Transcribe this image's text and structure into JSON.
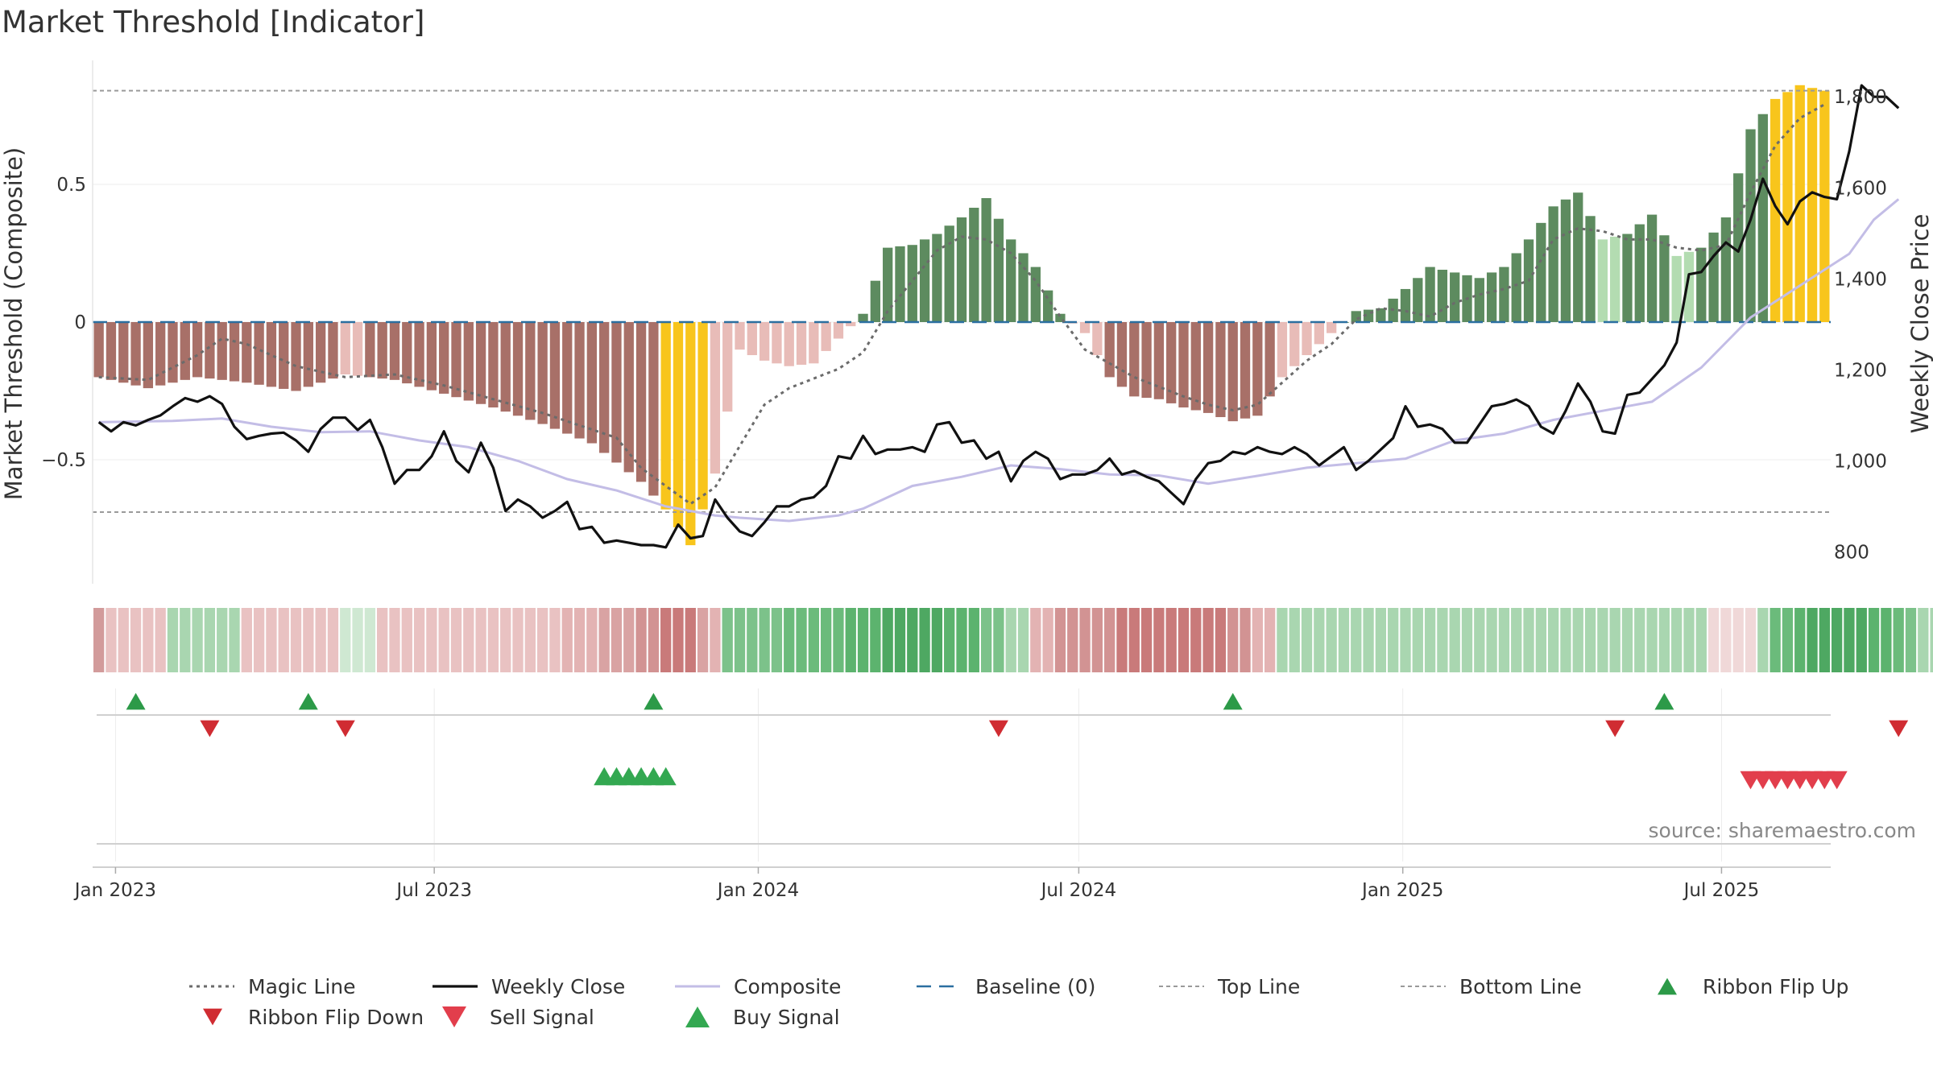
{
  "chart_data": {
    "type": "bar",
    "title": "Market Threshold [Indicator]",
    "ylabel_left": "Market Threshold (Composite)",
    "ylabel_right": "Weekly Close Price",
    "source": "source: sharemaestro.com",
    "x_start": "2022-12-19",
    "x_end": "2025-09-01",
    "xticks": [
      {
        "date": "2023-01-01",
        "label": "Jan 2023"
      },
      {
        "date": "2023-07-01",
        "label": "Jul 2023"
      },
      {
        "date": "2024-01-01",
        "label": "Jan 2024"
      },
      {
        "date": "2024-07-01",
        "label": "Jul 2024"
      },
      {
        "date": "2025-01-01",
        "label": "Jan 2025"
      },
      {
        "date": "2025-07-01",
        "label": "Jul 2025"
      }
    ],
    "ylim_left": [
      -0.95,
      0.95
    ],
    "yticks_left": [
      {
        "v": 0.5,
        "label": "0.5"
      },
      {
        "v": 0,
        "label": "0"
      },
      {
        "v": -0.5,
        "label": "−0.5"
      }
    ],
    "ylim_right": [
      730,
      1880
    ],
    "yticks_right": [
      {
        "v": 800,
        "label": "800"
      },
      {
        "v": 1000,
        "label": "1,000"
      },
      {
        "v": 1200,
        "label": "1,200"
      },
      {
        "v": 1400,
        "label": "1,400"
      },
      {
        "v": 1600,
        "label": "1,600"
      },
      {
        "v": 1800,
        "label": "1,800"
      }
    ],
    "top_line": 0.84,
    "bottom_line": -0.69,
    "composite_anchors": [
      [
        0,
        -0.2
      ],
      [
        4,
        -0.24
      ],
      [
        8,
        -0.2
      ],
      [
        12,
        -0.22
      ],
      [
        16,
        -0.25
      ],
      [
        20,
        -0.19
      ],
      [
        24,
        -0.21
      ],
      [
        28,
        -0.26
      ],
      [
        32,
        -0.31
      ],
      [
        36,
        -0.37
      ],
      [
        40,
        -0.44
      ],
      [
        44,
        -0.58
      ],
      [
        46,
        -0.68
      ],
      [
        48,
        -0.81
      ],
      [
        50,
        -0.55
      ],
      [
        52,
        -0.1
      ],
      [
        54,
        -0.14
      ],
      [
        56,
        -0.16
      ],
      [
        58,
        -0.15
      ],
      [
        60,
        -0.06
      ],
      [
        62,
        0.03
      ],
      [
        64,
        0.27
      ],
      [
        66,
        0.28
      ],
      [
        68,
        0.32
      ],
      [
        70,
        0.38
      ],
      [
        72,
        0.45
      ],
      [
        74,
        0.3
      ],
      [
        76,
        0.2
      ],
      [
        78,
        0.03
      ],
      [
        80,
        -0.04
      ],
      [
        82,
        -0.2
      ],
      [
        84,
        -0.27
      ],
      [
        86,
        -0.28
      ],
      [
        88,
        -0.31
      ],
      [
        90,
        -0.33
      ],
      [
        92,
        -0.36
      ],
      [
        94,
        -0.34
      ],
      [
        96,
        -0.2
      ],
      [
        98,
        -0.12
      ],
      [
        100,
        -0.04
      ],
      [
        102,
        0.04
      ],
      [
        104,
        0.05
      ],
      [
        106,
        0.12
      ],
      [
        108,
        0.2
      ],
      [
        110,
        0.18
      ],
      [
        112,
        0.16
      ],
      [
        114,
        0.2
      ],
      [
        116,
        0.3
      ],
      [
        118,
        0.42
      ],
      [
        120,
        0.47
      ],
      [
        122,
        0.3
      ],
      [
        124,
        0.32
      ],
      [
        126,
        0.39
      ],
      [
        128,
        0.24
      ],
      [
        130,
        0.27
      ],
      [
        132,
        0.38
      ],
      [
        134,
        0.7
      ],
      [
        136,
        0.81
      ],
      [
        138,
        0.86
      ],
      [
        140,
        0.84
      ],
      [
        142,
        0.79
      ],
      [
        144,
        0.76
      ],
      [
        146,
        0.74
      ],
      [
        148,
        0.7
      ],
      [
        150,
        0.64
      ]
    ],
    "magic_line_anchors": [
      [
        0,
        -0.2
      ],
      [
        4,
        -0.21
      ],
      [
        8,
        -0.12
      ],
      [
        10,
        -0.06
      ],
      [
        12,
        -0.08
      ],
      [
        16,
        -0.16
      ],
      [
        20,
        -0.2
      ],
      [
        24,
        -0.19
      ],
      [
        28,
        -0.23
      ],
      [
        32,
        -0.28
      ],
      [
        36,
        -0.33
      ],
      [
        40,
        -0.39
      ],
      [
        42,
        -0.42
      ],
      [
        44,
        -0.53
      ],
      [
        48,
        -0.66
      ],
      [
        50,
        -0.6
      ],
      [
        52,
        -0.45
      ],
      [
        54,
        -0.3
      ],
      [
        56,
        -0.24
      ],
      [
        60,
        -0.17
      ],
      [
        62,
        -0.11
      ],
      [
        64,
        0.04
      ],
      [
        66,
        0.15
      ],
      [
        68,
        0.26
      ],
      [
        70,
        0.31
      ],
      [
        72,
        0.3
      ],
      [
        74,
        0.25
      ],
      [
        76,
        0.15
      ],
      [
        78,
        0.02
      ],
      [
        80,
        -0.1
      ],
      [
        84,
        -0.2
      ],
      [
        88,
        -0.27
      ],
      [
        90,
        -0.3
      ],
      [
        92,
        -0.32
      ],
      [
        94,
        -0.3
      ],
      [
        96,
        -0.22
      ],
      [
        98,
        -0.14
      ],
      [
        100,
        -0.08
      ],
      [
        102,
        0.01
      ],
      [
        104,
        0.05
      ],
      [
        106,
        0.04
      ],
      [
        108,
        0.02
      ],
      [
        110,
        0.07
      ],
      [
        112,
        0.1
      ],
      [
        114,
        0.12
      ],
      [
        116,
        0.15
      ],
      [
        118,
        0.3
      ],
      [
        120,
        0.34
      ],
      [
        122,
        0.33
      ],
      [
        124,
        0.3
      ],
      [
        126,
        0.3
      ],
      [
        128,
        0.27
      ],
      [
        130,
        0.26
      ],
      [
        132,
        0.28
      ],
      [
        134,
        0.47
      ],
      [
        136,
        0.64
      ],
      [
        138,
        0.74
      ],
      [
        140,
        0.79
      ],
      [
        142,
        0.78
      ],
      [
        144,
        0.77
      ],
      [
        146,
        0.76
      ],
      [
        148,
        0.75
      ],
      [
        150,
        0.72
      ]
    ],
    "weekly_close_points": [
      [
        0,
        1085
      ],
      [
        1,
        1065
      ],
      [
        2,
        1085
      ],
      [
        3,
        1078
      ],
      [
        4,
        1090
      ],
      [
        5,
        1100
      ],
      [
        6,
        1120
      ],
      [
        7,
        1138
      ],
      [
        8,
        1130
      ],
      [
        9,
        1142
      ],
      [
        10,
        1125
      ],
      [
        11,
        1075
      ],
      [
        12,
        1048
      ],
      [
        13,
        1055
      ],
      [
        14,
        1060
      ],
      [
        15,
        1062
      ],
      [
        16,
        1045
      ],
      [
        17,
        1020
      ],
      [
        18,
        1070
      ],
      [
        19,
        1095
      ],
      [
        20,
        1095
      ],
      [
        21,
        1068
      ],
      [
        22,
        1090
      ],
      [
        23,
        1030
      ],
      [
        24,
        950
      ],
      [
        25,
        980
      ],
      [
        26,
        980
      ],
      [
        27,
        1010
      ],
      [
        28,
        1065
      ],
      [
        29,
        1000
      ],
      [
        30,
        975
      ],
      [
        31,
        1040
      ],
      [
        32,
        985
      ],
      [
        33,
        890
      ],
      [
        34,
        915
      ],
      [
        35,
        900
      ],
      [
        36,
        875
      ],
      [
        37,
        890
      ],
      [
        38,
        910
      ],
      [
        39,
        850
      ],
      [
        40,
        855
      ],
      [
        41,
        820
      ],
      [
        42,
        825
      ],
      [
        43,
        820
      ],
      [
        44,
        815
      ],
      [
        45,
        815
      ],
      [
        46,
        810
      ],
      [
        47,
        860
      ],
      [
        48,
        830
      ],
      [
        49,
        835
      ],
      [
        50,
        915
      ],
      [
        51,
        875
      ],
      [
        52,
        845
      ],
      [
        53,
        835
      ],
      [
        54,
        865
      ],
      [
        55,
        900
      ],
      [
        56,
        900
      ],
      [
        57,
        915
      ],
      [
        58,
        920
      ],
      [
        59,
        945
      ],
      [
        60,
        1010
      ],
      [
        61,
        1005
      ],
      [
        62,
        1055
      ],
      [
        63,
        1015
      ],
      [
        64,
        1025
      ],
      [
        65,
        1025
      ],
      [
        66,
        1030
      ],
      [
        67,
        1020
      ],
      [
        68,
        1080
      ],
      [
        69,
        1085
      ],
      [
        70,
        1040
      ],
      [
        71,
        1045
      ],
      [
        72,
        1005
      ],
      [
        73,
        1020
      ],
      [
        74,
        955
      ],
      [
        75,
        1000
      ],
      [
        76,
        1020
      ],
      [
        77,
        1005
      ],
      [
        78,
        960
      ],
      [
        79,
        970
      ],
      [
        80,
        970
      ],
      [
        81,
        980
      ],
      [
        82,
        1005
      ],
      [
        83,
        970
      ],
      [
        84,
        978
      ],
      [
        85,
        965
      ],
      [
        86,
        955
      ],
      [
        87,
        930
      ],
      [
        88,
        905
      ],
      [
        89,
        960
      ],
      [
        90,
        995
      ],
      [
        91,
        1000
      ],
      [
        92,
        1020
      ],
      [
        93,
        1015
      ],
      [
        94,
        1030
      ],
      [
        95,
        1020
      ],
      [
        96,
        1015
      ],
      [
        97,
        1030
      ],
      [
        98,
        1015
      ],
      [
        99,
        990
      ],
      [
        100,
        1010
      ],
      [
        101,
        1030
      ],
      [
        102,
        980
      ],
      [
        103,
        1000
      ],
      [
        104,
        1025
      ],
      [
        105,
        1050
      ],
      [
        106,
        1120
      ],
      [
        107,
        1075
      ],
      [
        108,
        1080
      ],
      [
        109,
        1070
      ],
      [
        110,
        1040
      ],
      [
        111,
        1040
      ],
      [
        112,
        1080
      ],
      [
        113,
        1120
      ],
      [
        114,
        1125
      ],
      [
        115,
        1135
      ],
      [
        116,
        1120
      ],
      [
        117,
        1075
      ],
      [
        118,
        1060
      ],
      [
        119,
        1110
      ],
      [
        120,
        1170
      ],
      [
        121,
        1130
      ],
      [
        122,
        1065
      ],
      [
        123,
        1060
      ],
      [
        124,
        1145
      ],
      [
        125,
        1150
      ],
      [
        126,
        1180
      ],
      [
        127,
        1210
      ],
      [
        128,
        1260
      ],
      [
        129,
        1410
      ],
      [
        130,
        1415
      ],
      [
        131,
        1450
      ],
      [
        132,
        1480
      ],
      [
        133,
        1460
      ],
      [
        134,
        1530
      ],
      [
        135,
        1620
      ],
      [
        136,
        1560
      ],
      [
        137,
        1520
      ],
      [
        138,
        1570
      ],
      [
        139,
        1590
      ],
      [
        140,
        1580
      ],
      [
        141,
        1575
      ],
      [
        142,
        1680
      ],
      [
        143,
        1825
      ],
      [
        144,
        1800
      ],
      [
        145,
        1800
      ],
      [
        146,
        1775
      ]
    ],
    "composite_mean_points": [
      [
        0,
        1085
      ],
      [
        6,
        1088
      ],
      [
        10,
        1093
      ],
      [
        14,
        1075
      ],
      [
        18,
        1063
      ],
      [
        22,
        1065
      ],
      [
        26,
        1045
      ],
      [
        30,
        1030
      ],
      [
        34,
        1000
      ],
      [
        38,
        960
      ],
      [
        42,
        935
      ],
      [
        46,
        900
      ],
      [
        50,
        880
      ],
      [
        52,
        875
      ],
      [
        56,
        868
      ],
      [
        60,
        880
      ],
      [
        62,
        895
      ],
      [
        66,
        945
      ],
      [
        70,
        965
      ],
      [
        74,
        990
      ],
      [
        78,
        982
      ],
      [
        82,
        970
      ],
      [
        86,
        968
      ],
      [
        90,
        950
      ],
      [
        94,
        967
      ],
      [
        98,
        985
      ],
      [
        102,
        995
      ],
      [
        106,
        1005
      ],
      [
        110,
        1045
      ],
      [
        114,
        1060
      ],
      [
        118,
        1090
      ],
      [
        122,
        1110
      ],
      [
        126,
        1130
      ],
      [
        130,
        1205
      ],
      [
        134,
        1315
      ],
      [
        138,
        1385
      ],
      [
        142,
        1455
      ],
      [
        144,
        1530
      ],
      [
        146,
        1575
      ]
    ],
    "ribbon_colors": [
      "#d29b9b",
      "#e9c2c2",
      "#e9c2c2",
      "#e9c2c2",
      "#e9c2c2",
      "#e9c2c2",
      "#a9d6b0",
      "#a9d6b0",
      "#a9d6b0",
      "#a9d6b0",
      "#a9d6b0",
      "#a9d6b0",
      "#e9c2c2",
      "#e9c2c2",
      "#e9c2c2",
      "#e9c2c2",
      "#e9c2c2",
      "#e9c2c2",
      "#e9c2c2",
      "#e9c2c2",
      "#cfe8d2",
      "#cfe8d2",
      "#cfe8d2",
      "#e9c2c2",
      "#e9c2c2",
      "#e9c2c2",
      "#e9c2c2",
      "#e9c2c2",
      "#e9c2c2",
      "#e9c2c2",
      "#e9c2c2",
      "#e9c2c2",
      "#e9c2c2",
      "#e9c2c2",
      "#e9c2c2",
      "#e9c2c2",
      "#e9c2c2",
      "#e9c2c2",
      "#e3b3b3",
      "#e3b3b3",
      "#e3b3b3",
      "#d9a3a3",
      "#d9a3a3",
      "#d9a3a3",
      "#d29393",
      "#d29393",
      "#c97a7a",
      "#c97a7a",
      "#c97a7a",
      "#d9a3a3",
      "#e3b3b3",
      "#7cc28a",
      "#7cc28a",
      "#7cc28a",
      "#7cc28a",
      "#7cc28a",
      "#6bbb7b",
      "#6bbb7b",
      "#6bbb7b",
      "#6bbb7b",
      "#6bbb7b",
      "#5cb36e",
      "#5cb36e",
      "#5cb36e",
      "#4ea862",
      "#4ea862",
      "#4ea862",
      "#4ea862",
      "#4ea862",
      "#5cb36e",
      "#5cb36e",
      "#5cb36e",
      "#7cc28a",
      "#7cc28a",
      "#a9d6b0",
      "#a9d6b0",
      "#e3b3b3",
      "#e3b3b3",
      "#d29393",
      "#d29393",
      "#d29393",
      "#d29393",
      "#d29393",
      "#c97a7a",
      "#c97a7a",
      "#c97a7a",
      "#c97a7a",
      "#c97a7a",
      "#c97a7a",
      "#c97a7a",
      "#c97a7a",
      "#c97a7a",
      "#d29393",
      "#d29393",
      "#e3b3b3",
      "#e3b3b3",
      "#a9d6b0",
      "#a9d6b0",
      "#a9d6b0",
      "#a9d6b0",
      "#a9d6b0",
      "#a9d6b0",
      "#a9d6b0",
      "#a9d6b0",
      "#a9d6b0",
      "#a9d6b0",
      "#a9d6b0",
      "#a9d6b0",
      "#a9d6b0",
      "#a9d6b0",
      "#a9d6b0",
      "#a9d6b0",
      "#a9d6b0",
      "#a9d6b0",
      "#a9d6b0",
      "#a9d6b0",
      "#a9d6b0",
      "#a9d6b0",
      "#a9d6b0",
      "#a9d6b0",
      "#a9d6b0",
      "#a9d6b0",
      "#a9d6b0",
      "#a9d6b0",
      "#a9d6b0",
      "#a9d6b0",
      "#a9d6b0",
      "#a9d6b0",
      "#a9d6b0",
      "#a9d6b0",
      "#a9d6b0",
      "#f0d8d8",
      "#f0d8d8",
      "#f0d8d8",
      "#f0d8d8",
      "#a9d6b0",
      "#6bbb7b",
      "#6bbb7b",
      "#5cb36e",
      "#4ea862",
      "#4ea862",
      "#4ea862",
      "#4ea862",
      "#4ea862",
      "#5cb36e",
      "#5cb36e",
      "#6bbb7b",
      "#7cc28a",
      "#a9d6b0",
      "#a9d6b0",
      "#a9d6b0",
      "#f0d8d8"
    ],
    "ribbon_flip_up_weeks": [
      3,
      17,
      45,
      92,
      127
    ],
    "ribbon_flip_down_weeks": [
      9,
      20,
      73,
      123,
      146
    ],
    "buy_signal_weeks": [
      41,
      42,
      43,
      44,
      45,
      46
    ],
    "sell_signal_weeks": [
      134,
      135,
      136,
      137,
      138,
      139,
      140,
      141
    ],
    "colors": {
      "dark_red": "#a87068",
      "light_red": "#e8bcb8",
      "dark_green": "#5d8b5f",
      "light_green": "#b3dcb1",
      "yellow": "#f8c51c",
      "weekly_close": "#111111",
      "composite_line": "#c3bde6",
      "magic_line": "#6b6b6b",
      "baseline": "#2b6fa0",
      "top_bottom_line": "#9a9a9a",
      "flip_up": "#2c9a48",
      "flip_down": "#d02c32",
      "sell": "#e23e4c",
      "buy": "#33a851"
    },
    "legend": [
      {
        "label": "Magic Line",
        "marker": "dotted-line"
      },
      {
        "label": "Weekly Close",
        "marker": "solid-line"
      },
      {
        "label": "Composite",
        "marker": "light-line"
      },
      {
        "label": "Baseline (0)",
        "marker": "dashed-line"
      },
      {
        "label": "Top Line",
        "marker": "grey-dashed-line"
      },
      {
        "label": "Bottom Line",
        "marker": "grey-dashed-line"
      },
      {
        "label": "Ribbon Flip Up",
        "marker": "triangle-up"
      },
      {
        "label": "Ribbon Flip Down",
        "marker": "triangle-down"
      },
      {
        "label": "Sell Signal",
        "marker": "triangle-down-large"
      },
      {
        "label": "Buy Signal",
        "marker": "triangle-up-large"
      }
    ]
  }
}
